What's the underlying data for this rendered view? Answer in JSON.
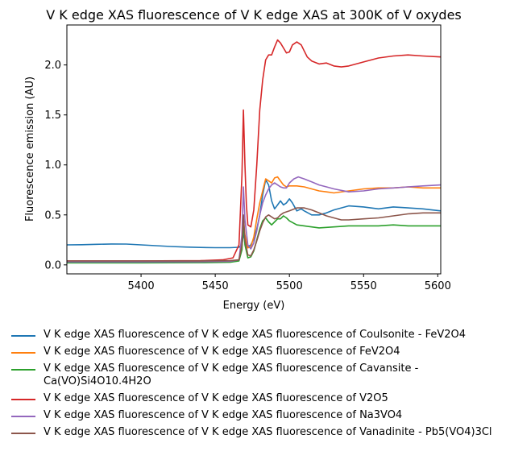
{
  "chart_data": {
    "type": "line",
    "title": "V K edge XAS fluorescence of V K edge XAS at 300K of V oxydes",
    "xlabel": "Energy (eV)",
    "ylabel": "Fluorescence emission (AU)",
    "xlim": [
      5350,
      5602
    ],
    "ylim": [
      -0.09,
      2.4
    ],
    "xticks": [
      5400,
      5450,
      5500,
      5550,
      5600
    ],
    "yticks": [
      0.0,
      0.5,
      1.0,
      1.5,
      2.0
    ],
    "xtick_labels": [
      "5400",
      "5450",
      "5500",
      "5550",
      "5600"
    ],
    "ytick_labels": [
      "0.0",
      "0.5",
      "1.0",
      "1.5",
      "2.0"
    ],
    "grid": false,
    "legend_position": "below",
    "series": [
      {
        "name": "V K edge XAS fluorescence of V K edge XAS fluorescence of Coulsonite - FeV2O4",
        "color": "#1f77b4",
        "x": [
          5350,
          5360,
          5370,
          5380,
          5390,
          5400,
          5410,
          5420,
          5430,
          5440,
          5450,
          5460,
          5466,
          5468,
          5469,
          5470,
          5472,
          5474,
          5476,
          5478,
          5480,
          5482,
          5484,
          5486,
          5488,
          5490,
          5492,
          5494,
          5496,
          5498,
          5500,
          5502,
          5505,
          5508,
          5510,
          5515,
          5520,
          5525,
          5530,
          5540,
          5550,
          5560,
          5570,
          5580,
          5590,
          5602
        ],
        "y": [
          0.2,
          0.202,
          0.206,
          0.209,
          0.208,
          0.2,
          0.192,
          0.184,
          0.178,
          0.174,
          0.172,
          0.172,
          0.176,
          0.2,
          0.3,
          0.26,
          0.18,
          0.2,
          0.26,
          0.36,
          0.5,
          0.7,
          0.85,
          0.8,
          0.64,
          0.56,
          0.6,
          0.64,
          0.6,
          0.62,
          0.66,
          0.62,
          0.54,
          0.56,
          0.54,
          0.5,
          0.5,
          0.52,
          0.55,
          0.59,
          0.58,
          0.56,
          0.58,
          0.57,
          0.56,
          0.54
        ]
      },
      {
        "name": "V K edge XAS fluorescence of V K edge XAS fluorescence of FeV2O4",
        "color": "#ff7f0e",
        "x": [
          5350,
          5400,
          5440,
          5460,
          5466,
          5468,
          5469,
          5470,
          5472,
          5474,
          5476,
          5478,
          5480,
          5482,
          5484,
          5486,
          5488,
          5490,
          5492,
          5494,
          5496,
          5498,
          5500,
          5505,
          5510,
          5515,
          5520,
          5525,
          5530,
          5540,
          5550,
          5560,
          5570,
          5580,
          5590,
          5602
        ],
        "y": [
          0.03,
          0.03,
          0.032,
          0.035,
          0.05,
          0.2,
          0.46,
          0.3,
          0.17,
          0.18,
          0.28,
          0.46,
          0.62,
          0.74,
          0.86,
          0.84,
          0.82,
          0.87,
          0.88,
          0.84,
          0.8,
          0.78,
          0.79,
          0.79,
          0.78,
          0.76,
          0.74,
          0.73,
          0.72,
          0.74,
          0.76,
          0.77,
          0.77,
          0.78,
          0.77,
          0.77
        ]
      },
      {
        "name": "V K edge XAS fluorescence of V K edge XAS fluorescence of Cavansite - Ca(VO)Si4O10.4H2O",
        "color": "#2ca02c",
        "x": [
          5350,
          5400,
          5440,
          5460,
          5466,
          5468,
          5469,
          5470,
          5472,
          5474,
          5476,
          5478,
          5480,
          5482,
          5484,
          5486,
          5488,
          5490,
          5492,
          5494,
          5496,
          5498,
          5500,
          5505,
          5510,
          5515,
          5520,
          5530,
          5540,
          5550,
          5560,
          5570,
          5580,
          5590,
          5602
        ],
        "y": [
          0.02,
          0.02,
          0.022,
          0.026,
          0.04,
          0.15,
          0.42,
          0.2,
          0.07,
          0.08,
          0.14,
          0.25,
          0.36,
          0.44,
          0.47,
          0.43,
          0.4,
          0.43,
          0.46,
          0.46,
          0.49,
          0.47,
          0.44,
          0.4,
          0.39,
          0.38,
          0.37,
          0.38,
          0.39,
          0.39,
          0.39,
          0.4,
          0.39,
          0.39,
          0.39
        ]
      },
      {
        "name": "V K edge XAS fluorescence of V K edge XAS fluorescence of V2O5",
        "color": "#d62728",
        "x": [
          5350,
          5400,
          5440,
          5455,
          5462,
          5466,
          5468,
          5469,
          5470,
          5471,
          5472,
          5474,
          5476,
          5478,
          5480,
          5482,
          5484,
          5486,
          5488,
          5490,
          5492,
          5494,
          5496,
          5498,
          5500,
          5502,
          5505,
          5508,
          5510,
          5512,
          5515,
          5520,
          5525,
          5530,
          5535,
          5540,
          5550,
          5560,
          5570,
          5580,
          5590,
          5602
        ],
        "y": [
          0.04,
          0.04,
          0.042,
          0.05,
          0.07,
          0.2,
          0.9,
          1.55,
          1.0,
          0.6,
          0.4,
          0.38,
          0.55,
          1.0,
          1.55,
          1.85,
          2.05,
          2.1,
          2.1,
          2.18,
          2.25,
          2.22,
          2.17,
          2.12,
          2.13,
          2.2,
          2.23,
          2.2,
          2.14,
          2.08,
          2.04,
          2.01,
          2.02,
          1.99,
          1.98,
          1.99,
          2.03,
          2.07,
          2.09,
          2.1,
          2.09,
          2.08
        ]
      },
      {
        "name": "V K edge XAS fluorescence of V K edge XAS fluorescence of Na3VO4",
        "color": "#9467bd",
        "x": [
          5350,
          5400,
          5440,
          5460,
          5466,
          5468,
          5469,
          5470,
          5472,
          5474,
          5476,
          5478,
          5480,
          5482,
          5484,
          5486,
          5488,
          5490,
          5492,
          5494,
          5496,
          5498,
          5500,
          5503,
          5506,
          5510,
          5515,
          5520,
          5525,
          5530,
          5540,
          5550,
          5560,
          5570,
          5580,
          5590,
          5602
        ],
        "y": [
          0.03,
          0.03,
          0.032,
          0.035,
          0.05,
          0.3,
          0.78,
          0.45,
          0.2,
          0.16,
          0.22,
          0.34,
          0.5,
          0.62,
          0.7,
          0.76,
          0.8,
          0.82,
          0.8,
          0.78,
          0.77,
          0.77,
          0.82,
          0.86,
          0.88,
          0.86,
          0.83,
          0.8,
          0.78,
          0.76,
          0.73,
          0.74,
          0.76,
          0.77,
          0.78,
          0.79,
          0.8
        ]
      },
      {
        "name": "V K edge XAS fluorescence of V K edge XAS fluorescence of Vanadinite - Pb5(VO4)3Cl",
        "color": "#8c564b",
        "x": [
          5350,
          5400,
          5440,
          5460,
          5466,
          5468,
          5469,
          5470,
          5472,
          5474,
          5476,
          5478,
          5480,
          5482,
          5484,
          5486,
          5488,
          5490,
          5492,
          5494,
          5496,
          5500,
          5505,
          5510,
          5515,
          5520,
          5525,
          5530,
          5535,
          5540,
          5550,
          5560,
          5570,
          5580,
          5590,
          5602
        ],
        "y": [
          0.04,
          0.04,
          0.04,
          0.042,
          0.05,
          0.2,
          0.5,
          0.25,
          0.1,
          0.09,
          0.15,
          0.24,
          0.34,
          0.42,
          0.48,
          0.5,
          0.48,
          0.46,
          0.47,
          0.5,
          0.52,
          0.54,
          0.57,
          0.57,
          0.55,
          0.52,
          0.49,
          0.47,
          0.45,
          0.45,
          0.46,
          0.47,
          0.49,
          0.51,
          0.52,
          0.52
        ]
      }
    ]
  }
}
